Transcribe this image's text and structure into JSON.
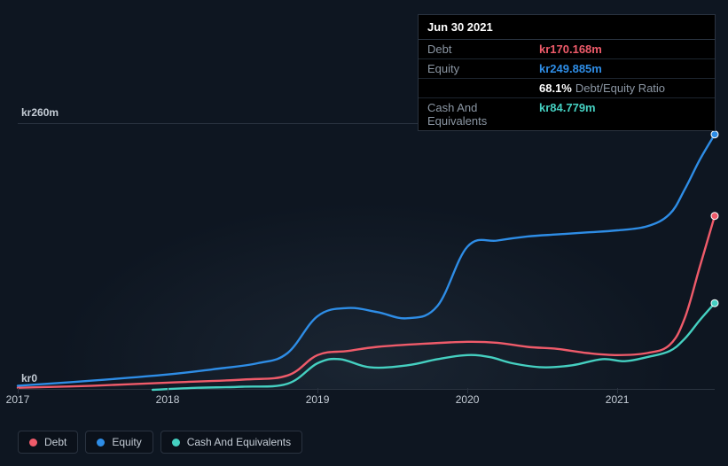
{
  "chart": {
    "type": "line",
    "background_color": "#0e1621",
    "grid_color": "#2a3340",
    "font_color": "#c5cdd6",
    "y": {
      "min": 0,
      "max": 260,
      "label_top": "kr260m",
      "label_bottom": "kr0"
    },
    "x": {
      "min": 2017,
      "max": 2021.65,
      "ticks": [
        {
          "v": 2017,
          "label": "2017"
        },
        {
          "v": 2018,
          "label": "2018"
        },
        {
          "v": 2019,
          "label": "2019"
        },
        {
          "v": 2020,
          "label": "2020"
        },
        {
          "v": 2021,
          "label": "2021"
        }
      ]
    },
    "series": {
      "debt": {
        "name": "Debt",
        "color": "#ef5b6a",
        "points": [
          [
            2017,
            2
          ],
          [
            2017.5,
            4
          ],
          [
            2018,
            7
          ],
          [
            2018.5,
            10
          ],
          [
            2018.8,
            14
          ],
          [
            2019,
            34
          ],
          [
            2019.2,
            38
          ],
          [
            2019.4,
            42
          ],
          [
            2019.7,
            45
          ],
          [
            2020,
            47
          ],
          [
            2020.2,
            46
          ],
          [
            2020.4,
            42
          ],
          [
            2020.6,
            40
          ],
          [
            2020.8,
            36
          ],
          [
            2021,
            34
          ],
          [
            2021.2,
            36
          ],
          [
            2021.35,
            44
          ],
          [
            2021.45,
            70
          ],
          [
            2021.55,
            120
          ],
          [
            2021.65,
            170.168
          ]
        ]
      },
      "equity": {
        "name": "Equity",
        "color": "#2e8de6",
        "points": [
          [
            2017,
            4
          ],
          [
            2017.5,
            9
          ],
          [
            2018,
            15
          ],
          [
            2018.3,
            20
          ],
          [
            2018.6,
            26
          ],
          [
            2018.8,
            36
          ],
          [
            2019,
            72
          ],
          [
            2019.2,
            80
          ],
          [
            2019.4,
            76
          ],
          [
            2019.6,
            70
          ],
          [
            2019.8,
            82
          ],
          [
            2020,
            140
          ],
          [
            2020.2,
            146
          ],
          [
            2020.4,
            150
          ],
          [
            2020.6,
            152
          ],
          [
            2020.8,
            154
          ],
          [
            2021,
            156
          ],
          [
            2021.2,
            160
          ],
          [
            2021.35,
            172
          ],
          [
            2021.45,
            196
          ],
          [
            2021.55,
            225
          ],
          [
            2021.65,
            249.885
          ]
        ]
      },
      "cash": {
        "name": "Cash And Equivalents",
        "color": "#45d0c1",
        "points": [
          [
            2017.9,
            0
          ],
          [
            2018.2,
            2
          ],
          [
            2018.5,
            3
          ],
          [
            2018.8,
            6
          ],
          [
            2019,
            26
          ],
          [
            2019.15,
            30
          ],
          [
            2019.35,
            22
          ],
          [
            2019.6,
            24
          ],
          [
            2019.8,
            30
          ],
          [
            2020,
            34
          ],
          [
            2020.15,
            32
          ],
          [
            2020.3,
            26
          ],
          [
            2020.5,
            22
          ],
          [
            2020.7,
            24
          ],
          [
            2020.9,
            30
          ],
          [
            2021.05,
            28
          ],
          [
            2021.2,
            32
          ],
          [
            2021.35,
            38
          ],
          [
            2021.45,
            50
          ],
          [
            2021.55,
            68
          ],
          [
            2021.65,
            84.779
          ]
        ]
      }
    }
  },
  "tooltip": {
    "date": "Jun 30 2021",
    "rows": [
      {
        "label": "Debt",
        "value": "kr170.168m",
        "color": "#ef5b6a"
      },
      {
        "label": "Equity",
        "value": "kr249.885m",
        "color": "#2e8de6"
      },
      {
        "label": "",
        "pct": "68.1%",
        "pct_label": "Debt/Equity Ratio"
      },
      {
        "label": "Cash And Equivalents",
        "value": "kr84.779m",
        "color": "#45d0c1"
      }
    ]
  },
  "legend": [
    {
      "key": "debt",
      "label": "Debt",
      "color": "#ef5b6a"
    },
    {
      "key": "equity",
      "label": "Equity",
      "color": "#2e8de6"
    },
    {
      "key": "cash",
      "label": "Cash And Equivalents",
      "color": "#45d0c1"
    }
  ]
}
